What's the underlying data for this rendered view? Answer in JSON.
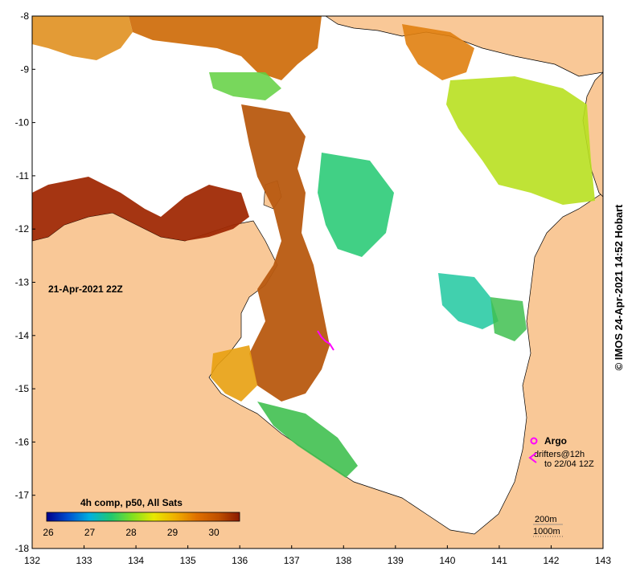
{
  "map": {
    "date_label": "21-Apr-2021 22Z",
    "credit": "© IMOS 24-Apr-2021 14:52 Hobart",
    "lon_ticks": [
      "132",
      "133",
      "134",
      "135",
      "136",
      "137",
      "138",
      "139",
      "140",
      "141",
      "142",
      "143"
    ],
    "lat_ticks": [
      "-8",
      "-9",
      "-10",
      "-11",
      "-12",
      "-13",
      "-14",
      "-15",
      "-16",
      "-17",
      "-18"
    ],
    "colorbar": {
      "title": "4h comp, p50, All Sats",
      "ticks": [
        "26",
        "27",
        "28",
        "29",
        "30"
      ],
      "colors": [
        "#00008b",
        "#0050d0",
        "#00b0e0",
        "#20c870",
        "#80e020",
        "#e8e800",
        "#f0b000",
        "#e07000",
        "#c05000",
        "#8b1a00"
      ]
    },
    "legend": {
      "argo": "Argo",
      "drifters_line1": "drifters@12h",
      "drifters_line2": "to 22/04 12Z",
      "contour_200": "200m",
      "contour_1000": "1000m",
      "argo_color": "#ff00ff"
    },
    "colors": {
      "land": "#f9c897",
      "cloud": "#ffffff"
    }
  }
}
